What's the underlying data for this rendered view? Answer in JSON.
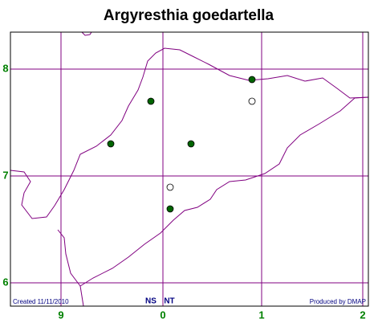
{
  "header": {
    "title": "Argyresthia goedartella"
  },
  "grid": {
    "row_labels": [
      "8",
      "7",
      "6"
    ],
    "column_labels": [
      "9",
      "0",
      "1",
      "2"
    ]
  },
  "footer": {
    "created": "Created 11/11/2010",
    "squares": [
      "NS",
      "NT"
    ],
    "credit": "Produced by DMAP"
  }
}
